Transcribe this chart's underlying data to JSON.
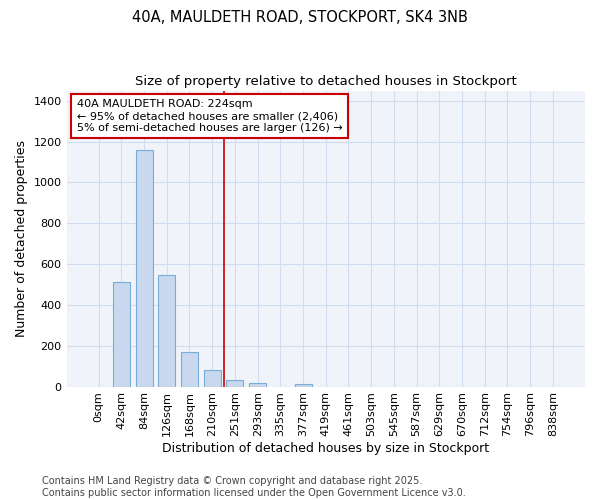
{
  "title_line1": "40A, MAULDETH ROAD, STOCKPORT, SK4 3NB",
  "title_line2": "Size of property relative to detached houses in Stockport",
  "xlabel": "Distribution of detached houses by size in Stockport",
  "ylabel": "Number of detached properties",
  "categories": [
    "0sqm",
    "42sqm",
    "84sqm",
    "126sqm",
    "168sqm",
    "210sqm",
    "251sqm",
    "293sqm",
    "335sqm",
    "377sqm",
    "419sqm",
    "461sqm",
    "503sqm",
    "545sqm",
    "587sqm",
    "629sqm",
    "670sqm",
    "712sqm",
    "754sqm",
    "796sqm",
    "838sqm"
  ],
  "values": [
    0,
    510,
    1160,
    545,
    170,
    80,
    30,
    20,
    0,
    15,
    0,
    0,
    0,
    0,
    0,
    0,
    0,
    0,
    0,
    0,
    0
  ],
  "bar_color": "#c8d8ee",
  "bar_edge_color": "#7aadd4",
  "vline_x": 5.5,
  "vline_color": "#cc0000",
  "annotation_text": "40A MAULDETH ROAD: 224sqm\n← 95% of detached houses are smaller (2,406)\n5% of semi-detached houses are larger (126) →",
  "annotation_box_color": "#ffffff",
  "annotation_box_edge": "#cc0000",
  "ylim": [
    0,
    1450
  ],
  "yticks": [
    0,
    200,
    400,
    600,
    800,
    1000,
    1200,
    1400
  ],
  "plot_bg_color": "#f0f4fa",
  "fig_bg_color": "#ffffff",
  "grid_color": "#d0ddf0",
  "footer_text": "Contains HM Land Registry data © Crown copyright and database right 2025.\nContains public sector information licensed under the Open Government Licence v3.0.",
  "title_fontsize": 10.5,
  "subtitle_fontsize": 9.5,
  "axis_label_fontsize": 9,
  "tick_fontsize": 8,
  "annotation_fontsize": 8,
  "footer_fontsize": 7
}
